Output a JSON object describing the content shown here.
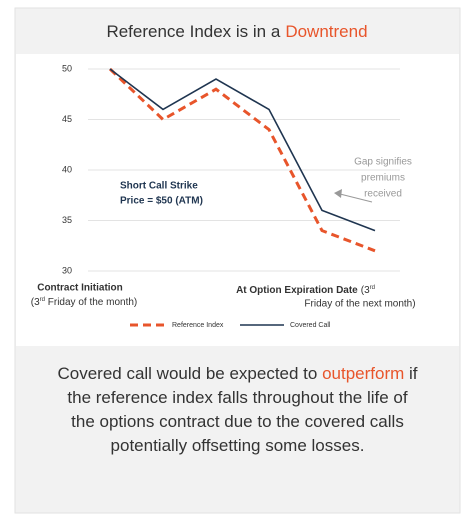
{
  "chart_data": {
    "type": "line",
    "title": {
      "text": "Reference Index is in a",
      "highlight": "Downtrend"
    },
    "categories": [
      null,
      null,
      null,
      null,
      null,
      null
    ],
    "series": [
      {
        "name": "Reference Index",
        "color": "#e8552b",
        "dashed": true,
        "values": [
          50,
          45,
          48,
          44,
          34,
          32
        ]
      },
      {
        "name": "Covered Call",
        "color": "#1f3550",
        "dashed": false,
        "values": [
          50,
          46,
          49,
          46,
          36,
          34
        ]
      }
    ],
    "ylim": [
      30,
      50
    ],
    "yticks": [
      30,
      35,
      40,
      45,
      50
    ],
    "grid": true,
    "legend": "bottom",
    "annotations": [
      {
        "lines": [
          "Short Call Strike",
          "Price = $50 (ATM)"
        ]
      },
      {
        "lines": [
          "Gap signifies",
          "premiums",
          "received"
        ]
      }
    ],
    "x_labels": [
      {
        "title": "Contract Initiation",
        "detail": [
          "(3",
          "rd",
          " Friday of the month)"
        ]
      },
      {
        "title": "At Option Expiration Date",
        "detail": [
          "(3",
          "rd",
          "Friday of the next month)"
        ]
      }
    ]
  },
  "body": {
    "parts": [
      "Covered call would be expected to",
      "outperform",
      "if the reference index falls throughout the life of the options contract due to the covered calls potentially offsetting some losses."
    ]
  }
}
